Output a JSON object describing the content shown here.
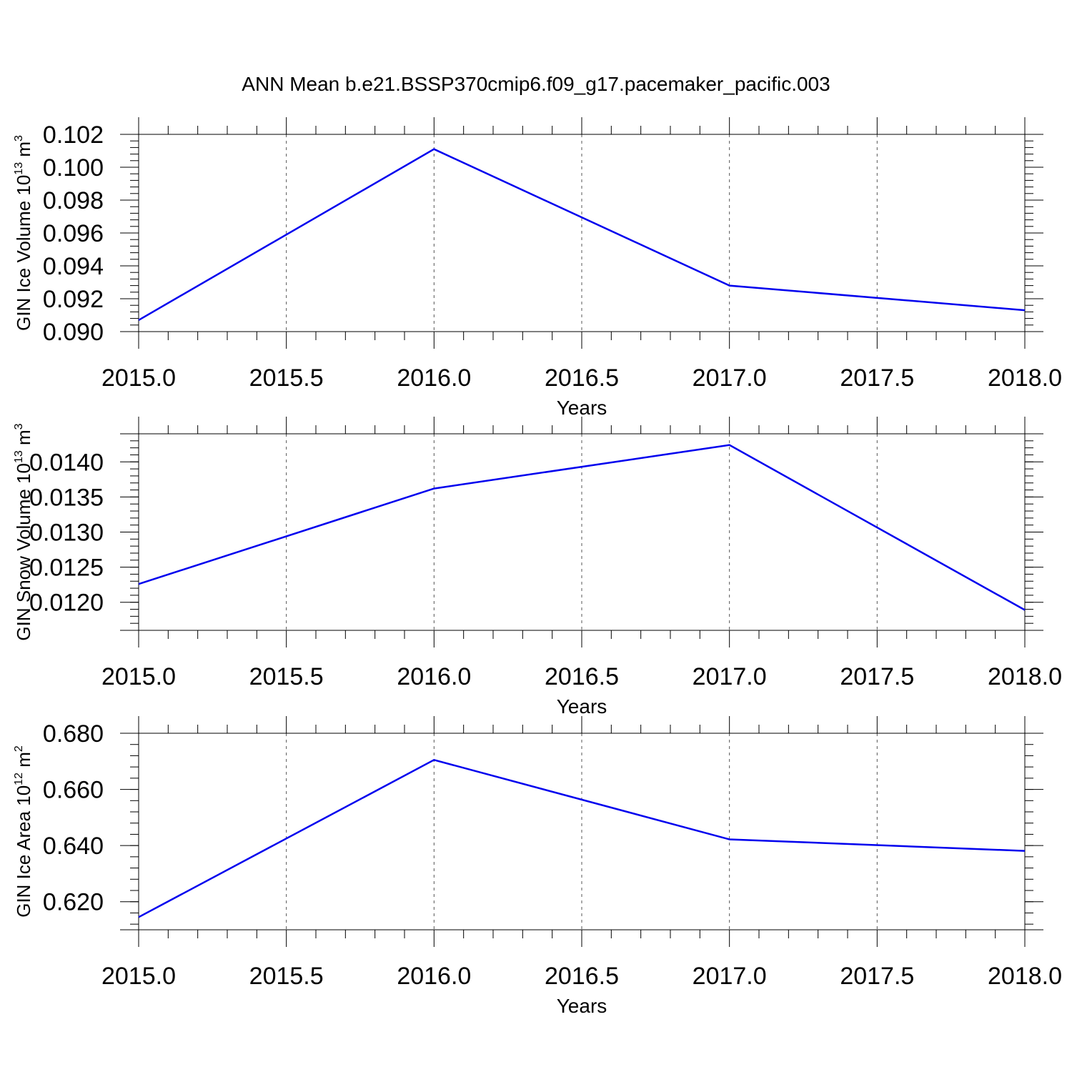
{
  "title": "ANN Mean b.e21.BSSP370cmip6.f09_g17.pacemaker_pacific.003",
  "chart_data": [
    {
      "type": "line",
      "ylabel": "GIN Ice Volume",
      "ylabel_unit_base": "10",
      "ylabel_unit_exp": "13",
      "ylabel_unit": "m",
      "ylabel_unit_power": "3",
      "xlabel": "Years",
      "xlim": [
        2015.0,
        2018.0
      ],
      "ylim": [
        0.09,
        0.102
      ],
      "x_ticks": [
        "2015.0",
        "2015.5",
        "2016.0",
        "2016.5",
        "2017.0",
        "2017.5",
        "2018.0"
      ],
      "y_ticks": [
        "0.090",
        "0.092",
        "0.094",
        "0.096",
        "0.098",
        "0.100",
        "0.102"
      ],
      "x": [
        2015.0,
        2016.0,
        2017.0,
        2018.0
      ],
      "y": [
        0.0907,
        0.1011,
        0.0928,
        0.0913
      ],
      "color": "#0000ee",
      "grid": "dashed vertical at major x ticks"
    },
    {
      "type": "line",
      "ylabel": "GIN Snow Volume",
      "ylabel_unit_base": "10",
      "ylabel_unit_exp": "13",
      "ylabel_unit": "m",
      "ylabel_unit_power": "3",
      "xlabel": "Years",
      "xlim": [
        2015.0,
        2018.0
      ],
      "ylim": [
        0.0116,
        0.0144
      ],
      "x_ticks": [
        "2015.0",
        "2015.5",
        "2016.0",
        "2016.5",
        "2017.0",
        "2017.5",
        "2018.0"
      ],
      "y_ticks": [
        "0.0120",
        "0.0125",
        "0.0130",
        "0.0135",
        "0.0140"
      ],
      "x": [
        2015.0,
        2016.0,
        2017.0,
        2018.0
      ],
      "y": [
        0.01226,
        0.01362,
        0.01424,
        0.01189
      ],
      "color": "#0000ee",
      "grid": "dashed vertical at major x ticks"
    },
    {
      "type": "line",
      "ylabel": "GIN Ice Area",
      "ylabel_unit_base": "10",
      "ylabel_unit_exp": "12",
      "ylabel_unit": "m",
      "ylabel_unit_power": "2",
      "xlabel": "Years",
      "xlim": [
        2015.0,
        2018.0
      ],
      "ylim": [
        0.61,
        0.68
      ],
      "x_ticks": [
        "2015.0",
        "2015.5",
        "2016.0",
        "2016.5",
        "2017.0",
        "2017.5",
        "2018.0"
      ],
      "y_ticks": [
        "0.620",
        "0.640",
        "0.660",
        "0.680"
      ],
      "x": [
        2015.0,
        2016.0,
        2017.0,
        2018.0
      ],
      "y": [
        0.6145,
        0.6705,
        0.6422,
        0.6381
      ],
      "color": "#0000ee",
      "grid": "dashed vertical at major x ticks"
    }
  ]
}
